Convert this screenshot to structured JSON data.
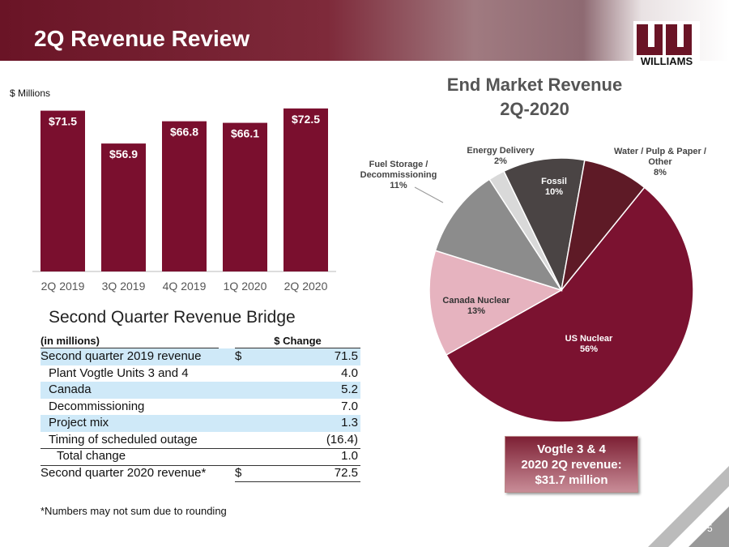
{
  "header": {
    "title": "2Q Revenue Review",
    "logo_text": "WILLIAMS"
  },
  "chart_data": [
    {
      "type": "bar",
      "y_label": "$ Millions",
      "categories": [
        "2Q 2019",
        "3Q 2019",
        "4Q 2019",
        "1Q 2020",
        "2Q 2020"
      ],
      "values": [
        71.5,
        56.9,
        66.8,
        66.1,
        72.5
      ],
      "value_labels": [
        "$71.5",
        "$56.9",
        "$66.8",
        "$66.1",
        "$72.5"
      ],
      "color": "#7a0f2e",
      "ylim": [
        0,
        80
      ]
    },
    {
      "type": "pie",
      "title": "End Market Revenue\n2Q-2020",
      "categories": [
        "US Nuclear",
        "Canada Nuclear",
        "Fuel Storage / Decommissioning",
        "Energy Delivery",
        "Fossil",
        "Water / Pulp & Paper / Other"
      ],
      "values": [
        56,
        13,
        11,
        2,
        10,
        8
      ],
      "value_labels": [
        "56%",
        "13%",
        "11%",
        "2%",
        "10%",
        "8%"
      ],
      "colors": [
        "#7b1230",
        "#e6b3bf",
        "#8c8c8c",
        "#d9d9d9",
        "#4a4444",
        "#5e1a26"
      ]
    }
  ],
  "table": {
    "title": "Second Quarter Revenue Bridge",
    "columns": [
      "(in millions)",
      "$ Change"
    ],
    "rows": [
      {
        "label": "Second quarter 2019 revenue",
        "currency": "$",
        "value": "71.5"
      },
      {
        "label": "Plant Vogtle Units 3 and 4",
        "value": "4.0"
      },
      {
        "label": "Canada",
        "value": "5.2"
      },
      {
        "label": "Decommissioning",
        "value": "7.0"
      },
      {
        "label": "Project mix",
        "value": "1.3"
      },
      {
        "label": "Timing of scheduled outage",
        "value": "(16.4)"
      },
      {
        "label": "Total change",
        "value": "1.0"
      },
      {
        "label": "Second quarter 2020 revenue*",
        "currency": "$",
        "value": "72.5"
      }
    ]
  },
  "footnote": "*Numbers may not sum due to rounding",
  "callout": "Vogtle 3 & 4\n2020 2Q revenue:\n$31.7 million",
  "page_number": "5"
}
